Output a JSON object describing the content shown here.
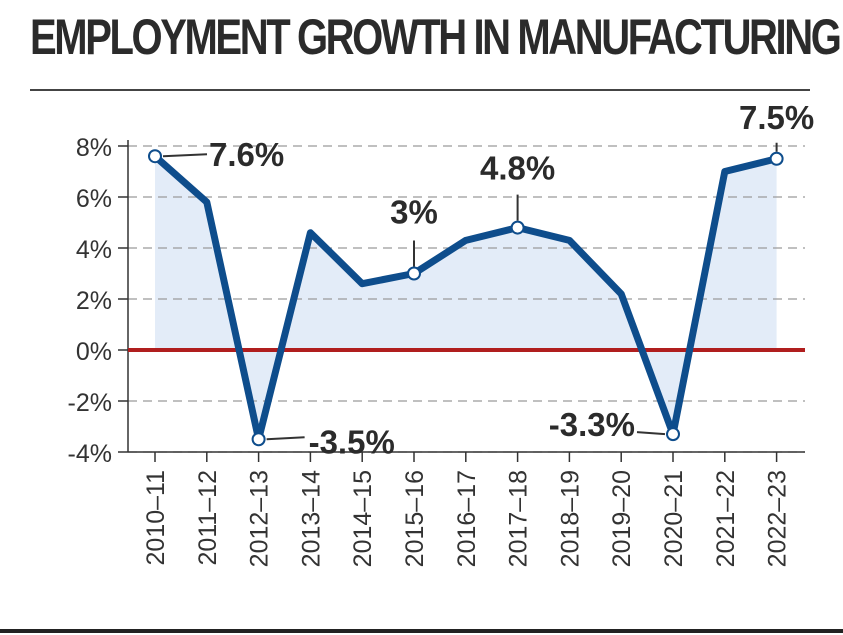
{
  "title": "EMPLOYMENT GROWTH IN MANUFACTURING",
  "colors": {
    "line": "#0e4d8c",
    "fill": "#e3ecf8",
    "zero_line": "#b01e1e",
    "grid": "#9a9a9a",
    "text": "#333333"
  },
  "chart_data": {
    "type": "line",
    "title": "EMPLOYMENT GROWTH IN MANUFACTURING",
    "xlabel": "",
    "ylabel": "",
    "ylim": [
      -4,
      8
    ],
    "y_ticks": [
      8,
      6,
      4,
      2,
      0,
      -2,
      -4
    ],
    "y_tick_labels": [
      "8%",
      "6%",
      "4%",
      "2%",
      "0%",
      "-2%",
      "-4%"
    ],
    "grid": "horizontal dashed",
    "categories": [
      "2010–11",
      "2011–12",
      "2012–13",
      "2013–14",
      "2014–15",
      "2015–16",
      "2016–17",
      "2017–18",
      "2018–19",
      "2019–20",
      "2020–21",
      "2021–22",
      "2022–23"
    ],
    "series": [
      {
        "values": [
          7.6,
          5.8,
          -3.5,
          4.6,
          2.6,
          3.0,
          4.3,
          4.8,
          4.3,
          2.2,
          -3.3,
          7.0,
          7.5
        ]
      }
    ],
    "annotations": [
      {
        "index": 0,
        "text": "7.6%"
      },
      {
        "index": 2,
        "text": "-3.5%"
      },
      {
        "index": 5,
        "text": "3%"
      },
      {
        "index": 7,
        "text": "4.8%"
      },
      {
        "index": 10,
        "text": "-3.3%"
      },
      {
        "index": 12,
        "text": "7.5%"
      }
    ]
  }
}
